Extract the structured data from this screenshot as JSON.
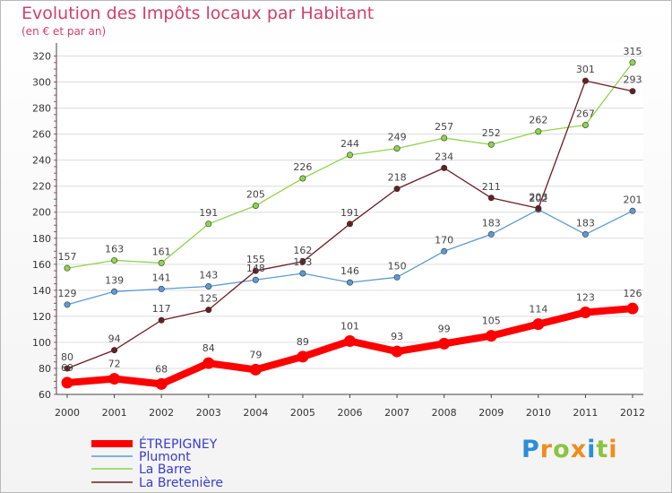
{
  "chart_data": {
    "type": "line",
    "title": "Evolution des Impôts locaux par Habitant",
    "subtitle": "(en € et par an)",
    "x": [
      "2000",
      "2001",
      "2002",
      "2003",
      "2004",
      "2005",
      "2006",
      "2007",
      "2008",
      "2009",
      "2010",
      "2011",
      "2012"
    ],
    "yticks": [
      60,
      80,
      100,
      120,
      140,
      160,
      180,
      200,
      220,
      240,
      260,
      280,
      300,
      320
    ],
    "ylim": [
      60,
      330
    ],
    "grid": "horizontal",
    "legend_position": "bottom-left",
    "series": [
      {
        "name": "ÉTREPIGNEY",
        "color": "#ff0000",
        "values": [
          69,
          72,
          68,
          84,
          79,
          89,
          101,
          93,
          99,
          105,
          114,
          123,
          126
        ]
      },
      {
        "name": "Plumont",
        "color": "#5b9bd5",
        "values": [
          129,
          139,
          141,
          143,
          148,
          153,
          146,
          150,
          170,
          183,
          202,
          183,
          201
        ]
      },
      {
        "name": "La Barre",
        "color": "#8fd44a",
        "values": [
          157,
          163,
          161,
          191,
          205,
          226,
          244,
          249,
          257,
          252,
          262,
          267,
          315
        ]
      },
      {
        "name": "La Bretenière",
        "color": "#6b1c24",
        "values": [
          80,
          94,
          117,
          125,
          155,
          162,
          191,
          218,
          234,
          211,
          203,
          301,
          293
        ]
      }
    ]
  },
  "logo": {
    "letters": [
      {
        "char": "P",
        "color": "#2a8fd8"
      },
      {
        "char": "r",
        "color": "#f28c1c"
      },
      {
        "char": "o",
        "color": "#8ac43f"
      },
      {
        "char": "x",
        "color": "#f28c1c"
      },
      {
        "char": "i",
        "color": "#2a8fd8"
      },
      {
        "char": "t",
        "color": "#8ac43f"
      },
      {
        "char": "i",
        "color": "#f28c1c"
      }
    ]
  }
}
